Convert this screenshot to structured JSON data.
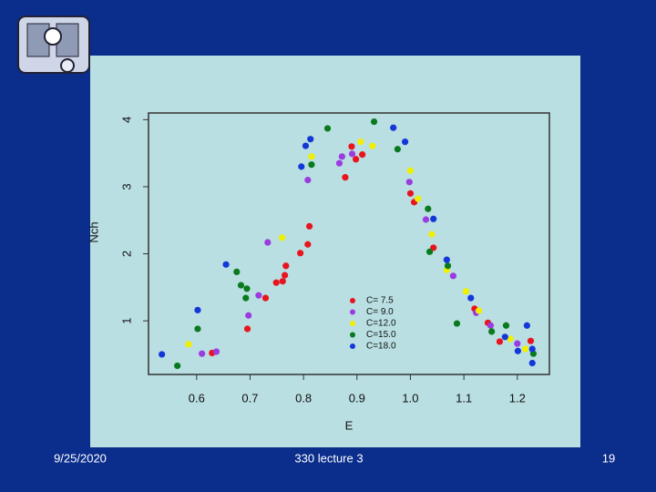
{
  "chart_data": {
    "type": "scatter",
    "xlabel": "E",
    "ylabel": "Nch",
    "xlim": [
      0.51,
      1.26
    ],
    "ylim": [
      0.2,
      4.1
    ],
    "xticks": [
      0.6,
      0.7,
      0.8,
      0.9,
      {
        "value": 1.0,
        "label": "1.0"
      },
      1.1,
      1.2
    ],
    "yticks": [
      1,
      2,
      3,
      4
    ],
    "legend": "bottom-center",
    "series": [
      {
        "name": "C= 7.5",
        "color": "#e8141e",
        "x": [
          0.629,
          0.695,
          0.729,
          0.749,
          0.761,
          0.765,
          0.767,
          0.794,
          0.808,
          0.811,
          0.878,
          0.89,
          0.898,
          0.91,
          1.0,
          1.007,
          1.043,
          1.12,
          1.145,
          1.167,
          1.225
        ],
        "values": [
          0.52,
          0.88,
          1.34,
          1.57,
          1.59,
          1.68,
          1.82,
          2.01,
          2.14,
          2.41,
          3.14,
          3.6,
          3.41,
          3.48,
          2.9,
          2.77,
          2.09,
          1.18,
          0.97,
          0.69,
          0.7
        ]
      },
      {
        "name": "C= 9.0",
        "color": "#9b3ce0",
        "x": [
          0.61,
          0.637,
          0.697,
          0.716,
          0.733,
          0.808,
          0.867,
          0.872,
          0.891,
          0.998,
          1.029,
          1.08,
          1.123,
          1.15,
          1.2
        ],
        "values": [
          0.51,
          0.54,
          1.08,
          1.38,
          2.17,
          3.1,
          3.35,
          3.45,
          3.49,
          3.07,
          2.51,
          1.67,
          1.12,
          0.93,
          0.66
        ]
      },
      {
        "name": "C=12.0",
        "color": "#f0f000",
        "x": [
          0.585,
          0.76,
          0.815,
          0.907,
          0.929,
          1.0,
          1.014,
          1.04,
          1.068,
          1.104,
          1.128,
          1.187,
          1.215
        ],
        "values": [
          0.65,
          2.24,
          3.45,
          3.67,
          3.61,
          3.24,
          2.82,
          2.29,
          1.76,
          1.44,
          1.15,
          0.73,
          0.58
        ]
      },
      {
        "name": "C=15.0",
        "color": "#0a7a1e",
        "x": [
          0.564,
          0.602,
          0.675,
          0.683,
          0.694,
          0.692,
          0.815,
          0.845,
          0.932,
          0.976,
          1.033,
          1.036,
          1.07,
          1.087,
          1.152,
          1.179,
          1.23
        ],
        "values": [
          0.33,
          0.88,
          1.73,
          1.53,
          1.48,
          1.34,
          3.33,
          3.87,
          3.97,
          3.56,
          2.67,
          2.03,
          1.82,
          0.96,
          0.84,
          0.93,
          0.51
        ]
      },
      {
        "name": "C=18.0",
        "color": "#1438d8",
        "x": [
          0.535,
          0.602,
          0.655,
          0.796,
          0.804,
          0.813,
          0.968,
          0.99,
          1.043,
          1.068,
          1.113,
          1.177,
          1.201,
          1.218,
          1.228,
          1.228
        ],
        "values": [
          0.5,
          1.16,
          1.84,
          3.3,
          3.61,
          3.71,
          3.88,
          3.67,
          2.52,
          1.91,
          1.34,
          0.76,
          0.55,
          0.93,
          0.58,
          0.37
        ]
      }
    ]
  },
  "footer": {
    "date": "9/25/2020",
    "title": "330 lecture 3",
    "page": "19"
  }
}
